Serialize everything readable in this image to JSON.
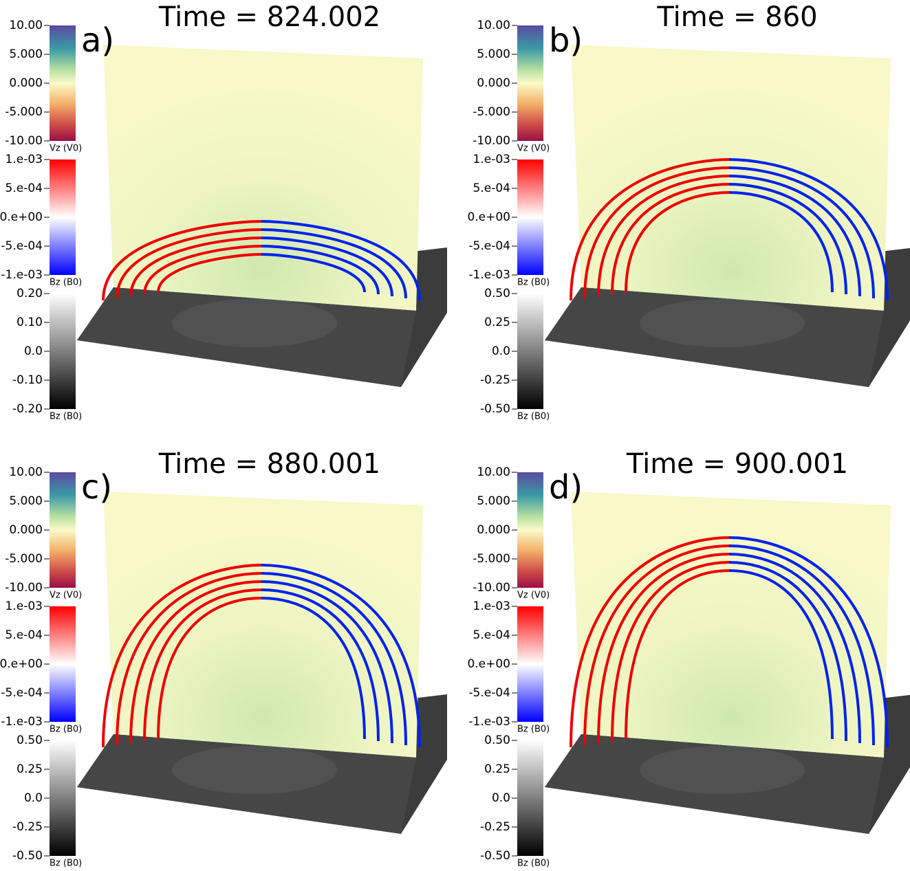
{
  "panels": [
    {
      "label": "a)",
      "title": "Time = 824.002",
      "colorbars": [
        {
          "title": "Vz (V0)",
          "ticks": [
            "10.00",
            "5.000",
            "0.000",
            "-5.000",
            "-10.00"
          ]
        },
        {
          "title": "Bz (B0)",
          "ticks": [
            "1.e-03",
            "5.e-04",
            "0.e+00",
            "-5.e-04",
            "-1.e-03"
          ]
        },
        {
          "title": "Bz (B0)",
          "ticks": [
            "0.20",
            "0.10",
            "0.0",
            "-0.10",
            "-0.20"
          ]
        }
      ]
    },
    {
      "label": "b)",
      "title": "Time = 860",
      "colorbars": [
        {
          "title": "Vz (V0)",
          "ticks": [
            "10.00",
            "5.000",
            "0.000",
            "-5.000",
            "-10.00"
          ]
        },
        {
          "title": "Bz (B0)",
          "ticks": [
            "1.e-03",
            "5.e-04",
            "0.e+00",
            "-5.e-04",
            "-1.e-03"
          ]
        },
        {
          "title": "Bz (B0)",
          "ticks": [
            "0.50",
            "0.25",
            "0.0",
            "-0.25",
            "-0.50"
          ]
        }
      ]
    },
    {
      "label": "c)",
      "title": "Time = 880.001",
      "colorbars": [
        {
          "title": "Vz (V0)",
          "ticks": [
            "10.00",
            "5.000",
            "0.000",
            "-5.000",
            "-10.00"
          ]
        },
        {
          "title": "Bz (B0)",
          "ticks": [
            "1.e-03",
            "5.e-04",
            "0.e+00",
            "-5.e-04",
            "-1.e-03"
          ]
        },
        {
          "title": "Bz (B0)",
          "ticks": [
            "0.50",
            "0.25",
            "0.0",
            "-0.25",
            "-0.50"
          ]
        }
      ]
    },
    {
      "label": "d)",
      "title": "Time = 900.001",
      "colorbars": [
        {
          "title": "Vz (V0)",
          "ticks": [
            "10.00",
            "5.000",
            "0.000",
            "-5.000",
            "-10.00"
          ]
        },
        {
          "title": "Bz (B0)",
          "ticks": [
            "1.e-03",
            "5.e-04",
            "0.e+00",
            "-5.e-04",
            "-1.e-03"
          ]
        },
        {
          "title": "Bz (B0)",
          "ticks": [
            "0.50",
            "0.25",
            "0.0",
            "-0.25",
            "-0.50"
          ]
        }
      ]
    }
  ]
}
